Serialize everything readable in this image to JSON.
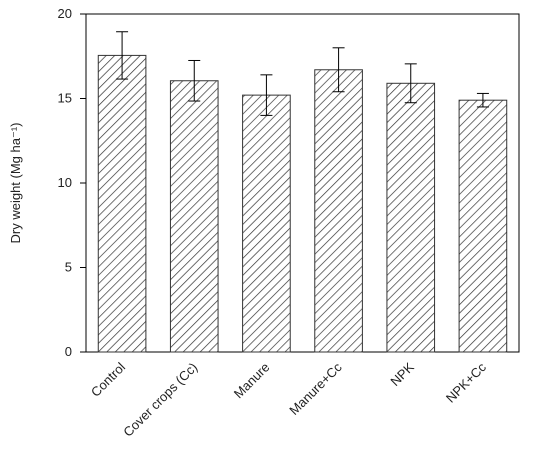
{
  "chart_data": {
    "type": "bar",
    "y_label": "Dry weight (Mg ha⁻¹)",
    "categories": [
      "Control",
      "Cover crops (Cc)",
      "Manure",
      "Manure+Cc",
      "NPK",
      "NPK+Cc"
    ],
    "values": [
      17.55,
      16.05,
      15.2,
      16.7,
      15.9,
      14.9
    ],
    "errors": [
      1.4,
      1.2,
      1.2,
      1.3,
      1.15,
      0.4
    ],
    "color": "#333333",
    "ylim": [
      0,
      20
    ],
    "yticks": [
      0,
      5,
      10,
      15,
      20
    ],
    "grid": false
  }
}
